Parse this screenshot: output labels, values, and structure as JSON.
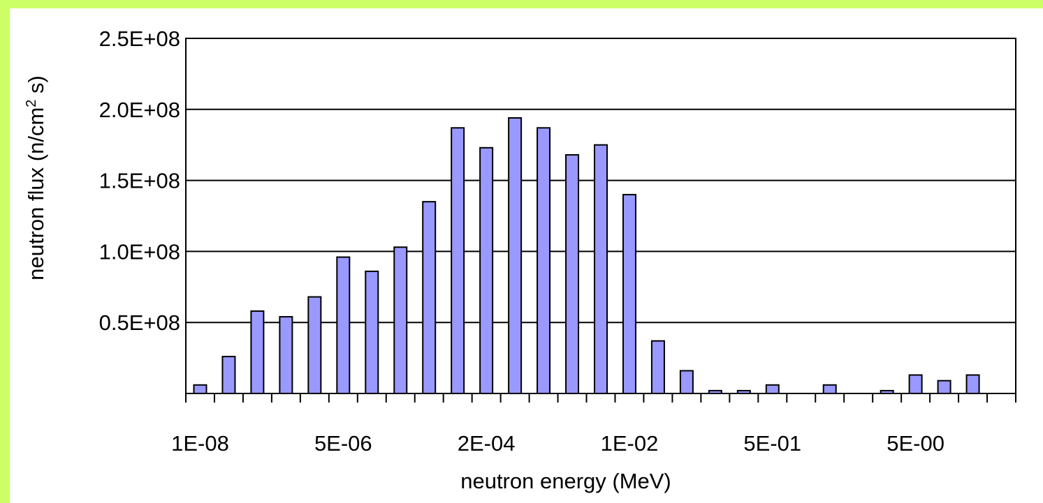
{
  "chart_data": {
    "type": "bar",
    "xlabel": "neutron energy (MeV)",
    "ylabel": "neutron flux (n/cm",
    "ylabel_superscript": "2",
    "ylabel_suffix": " s)",
    "ylim": [
      0,
      250000000
    ],
    "yticks": [
      {
        "value": 50000000,
        "label": "0.5E+08"
      },
      {
        "value": 100000000,
        "label": "1.0E+08"
      },
      {
        "value": 150000000,
        "label": "1.5E+08"
      },
      {
        "value": 200000000,
        "label": "2.0E+08"
      },
      {
        "value": 250000000,
        "label": "2.5E+08"
      }
    ],
    "xtick_labels": [
      {
        "category_index": 0,
        "label": "1E-08"
      },
      {
        "category_index": 5,
        "label": "5E-06"
      },
      {
        "category_index": 10,
        "label": "2E-04"
      },
      {
        "category_index": 15,
        "label": "1E-02"
      },
      {
        "category_index": 20,
        "label": "5E-01"
      },
      {
        "category_index": 25,
        "label": "5E-00"
      }
    ],
    "category_count": 29,
    "values": [
      6000000,
      26000000,
      58000000,
      54000000,
      68000000,
      96000000,
      86000000,
      103000000,
      135000000,
      187000000,
      173000000,
      194000000,
      187000000,
      168000000,
      175000000,
      140000000,
      37000000,
      16000000,
      2000000,
      2000000,
      6000000,
      0,
      6000000,
      0,
      2000000,
      13000000,
      9000000,
      13000000,
      0
    ],
    "bar_color": "#9999ff",
    "grid": "horizontal",
    "legend": "none"
  }
}
